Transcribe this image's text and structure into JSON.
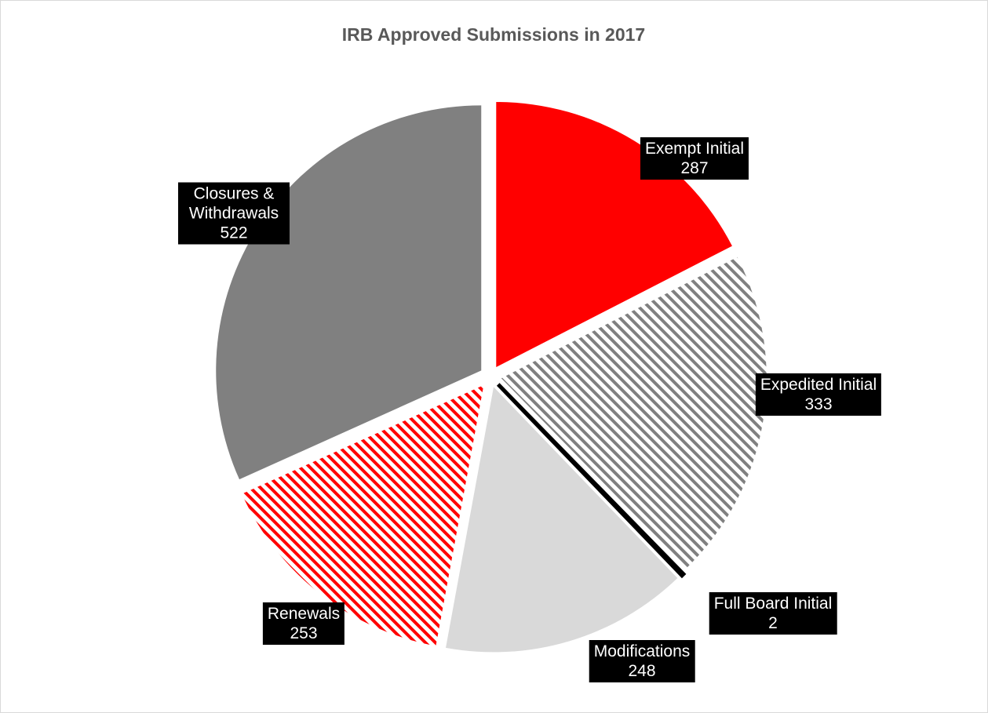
{
  "chart_data": {
    "type": "pie",
    "title": "IRB Approved Submissions in 2017",
    "categories": [
      "Exempt Initial",
      "Expedited Initial",
      "Full Board Initial",
      "Modifications",
      "Renewals",
      "Closures & Withdrawals"
    ],
    "values": [
      287,
      333,
      2,
      248,
      253,
      522
    ],
    "colors": [
      "#ff0000",
      "#808080",
      "#000000",
      "#d9d9d9",
      "#ff0000",
      "#808080"
    ],
    "hatched": [
      false,
      true,
      false,
      false,
      true,
      false
    ]
  }
}
